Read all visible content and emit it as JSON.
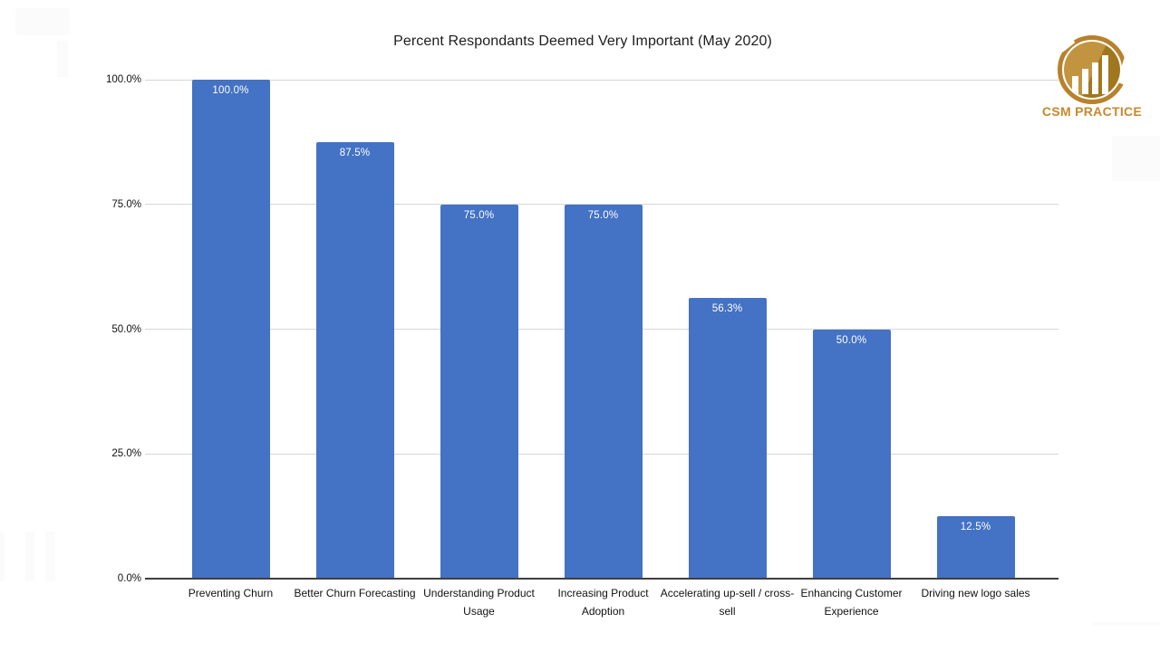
{
  "page": {
    "background": "#ffffff"
  },
  "logo": {
    "text": "CSM PRACTICE",
    "text_color": "#c9882d",
    "ring_color": "#b8812c",
    "circle_color_light": "#c39440",
    "circle_color_dark": "#a1771e",
    "icon": "bar-chart-circle-icon"
  },
  "chart_data": {
    "type": "bar",
    "title": "Percent Respondants Deemed Very Important (May 2020)",
    "categories": [
      "Preventing Churn",
      "Better Churn Forecasting",
      "Understanding Product Usage",
      "Increasing Product Adoption",
      "Accelerating up-sell / cross-sell",
      "Enhancing Customer Experience",
      "Driving new logo sales"
    ],
    "values": [
      100.0,
      87.5,
      75.0,
      75.0,
      56.3,
      50.0,
      12.5
    ],
    "value_labels": [
      "100.0%",
      "87.5%",
      "75.0%",
      "75.0%",
      "56.3%",
      "50.0%",
      "12.5%"
    ],
    "y_ticks": [
      0,
      25,
      50,
      75,
      100
    ],
    "y_tick_labels": [
      "0.0%",
      "25.0%",
      "50.0%",
      "75.0%",
      "100.0%"
    ],
    "ylim": [
      0,
      100
    ],
    "xlabel": "",
    "ylabel": "",
    "grid": true,
    "legend": false,
    "bar_color": "#4472c4",
    "value_label_color": "#ffffff",
    "gridline_color": "#d6d6d6",
    "axis_line_color": "#3f3f3f"
  }
}
